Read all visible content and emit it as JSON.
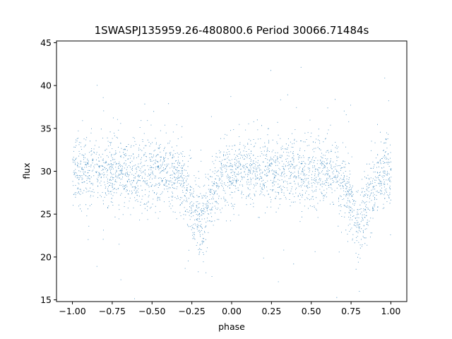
{
  "chart_data": {
    "type": "scatter",
    "title": "1SWASPJ135959.26-480800.6 Period 30066.71484s",
    "xlabel": "phase",
    "ylabel": "flux",
    "xlim": [
      -1.1,
      1.1
    ],
    "ylim": [
      14.8,
      45.2
    ],
    "xticks": [
      -1.0,
      -0.75,
      -0.5,
      -0.25,
      0.0,
      0.25,
      0.5,
      0.75,
      1.0
    ],
    "xtick_labels": [
      "−1.00",
      "−0.75",
      "−0.50",
      "−0.25",
      "0.00",
      "0.25",
      "0.50",
      "0.75",
      "1.00"
    ],
    "yticks": [
      15,
      20,
      25,
      30,
      35,
      40,
      45
    ],
    "ytick_labels": [
      "15",
      "20",
      "25",
      "30",
      "35",
      "40",
      "45"
    ],
    "grid": false,
    "marker_color": "#1f77b4",
    "series": [
      {
        "phase_range": [
          -1.0,
          1.0
        ],
        "baseline_flux": 30.0,
        "scatter_sigma": 2.0,
        "eclipses": [
          {
            "phase": -0.2,
            "width": 0.09,
            "depth": 5.5
          },
          {
            "phase": 0.8,
            "width": 0.09,
            "depth": 5.5
          }
        ]
      }
    ]
  }
}
